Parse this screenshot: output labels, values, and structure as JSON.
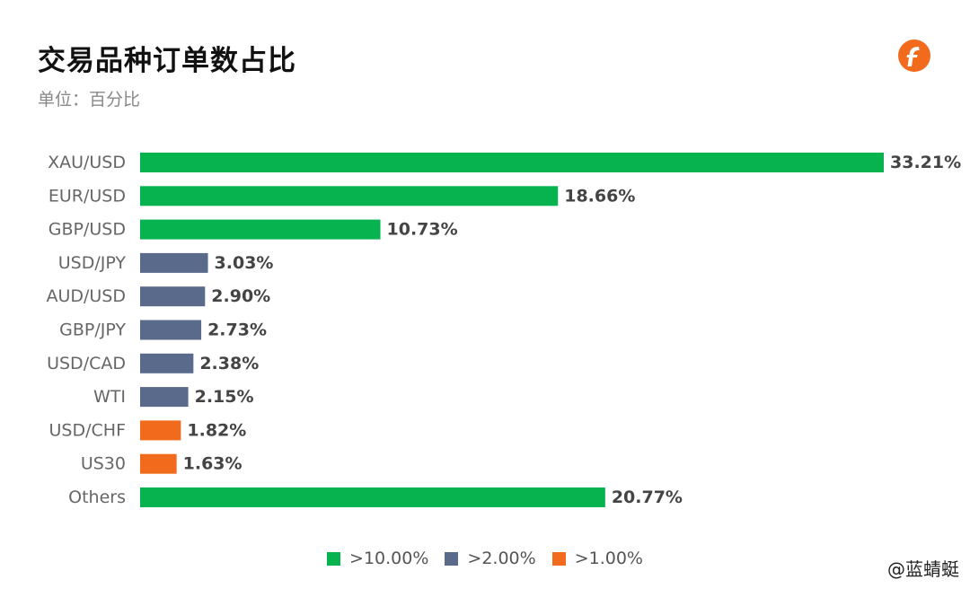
{
  "header": {
    "title": "交易品种订单数占比",
    "subtitle": "单位：百分比"
  },
  "logo": {
    "icon": "followme-logo-icon",
    "color": "#f26b1d"
  },
  "credit": "@蓝蜻蜓",
  "legend": [
    {
      "label": ">10.00%",
      "color": "#06b34f"
    },
    {
      "label": ">2.00%",
      "color": "#5a6a8a"
    },
    {
      "label": ">1.00%",
      "color": "#f26b1d"
    }
  ],
  "chart_data": {
    "type": "bar",
    "orientation": "horizontal",
    "title": "交易品种订单数占比",
    "subtitle": "单位：百分比",
    "categories": [
      "XAU/USD",
      "EUR/USD",
      "GBP/USD",
      "USD/JPY",
      "AUD/USD",
      "GBP/JPY",
      "USD/CAD",
      "WTI",
      "USD/CHF",
      "US30",
      "Others"
    ],
    "values": [
      33.21,
      18.66,
      10.73,
      3.03,
      2.9,
      2.73,
      2.38,
      2.15,
      1.82,
      1.63,
      20.77
    ],
    "value_labels": [
      "33.21%",
      "18.66%",
      "10.73%",
      "3.03%",
      "2.90%",
      "2.73%",
      "2.38%",
      "2.15%",
      "1.82%",
      "1.63%",
      "20.77%"
    ],
    "bar_colors": [
      "#06b34f",
      "#06b34f",
      "#06b34f",
      "#5a6a8a",
      "#5a6a8a",
      "#5a6a8a",
      "#5a6a8a",
      "#5a6a8a",
      "#f26b1d",
      "#f26b1d",
      "#06b34f"
    ],
    "xlim": [
      0,
      33.21
    ],
    "grid": false,
    "legend_position": "bottom-center"
  }
}
